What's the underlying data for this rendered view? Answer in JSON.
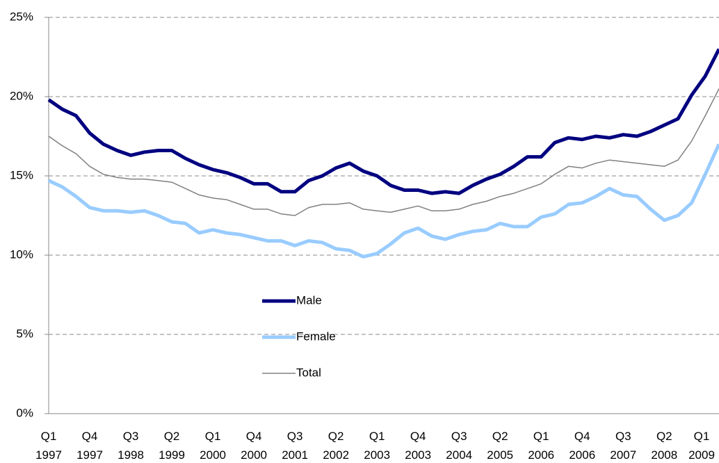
{
  "chart_data": {
    "type": "line",
    "categories": [
      "Q1\n1997",
      null,
      null,
      "Q4\n1997",
      null,
      null,
      "Q3\n1998",
      null,
      null,
      "Q2\n1999",
      null,
      null,
      "Q1\n2000",
      null,
      null,
      "Q4\n2000",
      null,
      null,
      "Q3\n2001",
      null,
      null,
      "Q2\n2002",
      null,
      null,
      "Q1\n2003",
      null,
      null,
      "Q4\n2003",
      null,
      null,
      "Q3\n2004",
      null,
      null,
      "Q2\n2005",
      null,
      null,
      "Q1\n2006",
      null,
      null,
      "Q4\n2006",
      null,
      null,
      "Q3\n2007",
      null,
      null,
      "Q2\n2008",
      null,
      null,
      "Q1\n2009",
      null
    ],
    "series": [
      {
        "name": "Male",
        "color": "#000080",
        "width": 5,
        "values": [
          19.8,
          19.2,
          18.8,
          17.7,
          17.0,
          16.6,
          16.3,
          16.5,
          16.6,
          16.6,
          16.1,
          15.7,
          15.4,
          15.2,
          14.9,
          14.5,
          14.5,
          14.0,
          14.0,
          14.7,
          15.0,
          15.5,
          15.8,
          15.3,
          15.0,
          14.4,
          14.1,
          14.1,
          13.9,
          14.0,
          13.9,
          14.4,
          14.8,
          15.1,
          15.6,
          16.2,
          16.2,
          17.1,
          17.4,
          17.3,
          17.5,
          17.4,
          17.6,
          17.5,
          17.8,
          18.2,
          18.6,
          20.1,
          21.3,
          23.0
        ]
      },
      {
        "name": "Female",
        "color": "#99ccff",
        "width": 5,
        "values": [
          14.7,
          14.3,
          13.7,
          13.0,
          12.8,
          12.8,
          12.7,
          12.8,
          12.5,
          12.1,
          12.0,
          11.4,
          11.6,
          11.4,
          11.3,
          11.1,
          10.9,
          10.9,
          10.6,
          10.9,
          10.8,
          10.4,
          10.3,
          9.9,
          10.1,
          10.7,
          11.4,
          11.7,
          11.2,
          11.0,
          11.3,
          11.5,
          11.6,
          12.0,
          11.8,
          11.8,
          12.4,
          12.6,
          13.2,
          13.3,
          13.7,
          14.2,
          13.8,
          13.7,
          12.9,
          12.2,
          12.5,
          13.3,
          15.1,
          17.0
        ]
      },
      {
        "name": "Total",
        "color": "#808080",
        "width": 1.5,
        "values": [
          17.5,
          16.9,
          16.4,
          15.6,
          15.1,
          14.9,
          14.8,
          14.8,
          14.7,
          14.6,
          14.2,
          13.8,
          13.6,
          13.5,
          13.2,
          12.9,
          12.9,
          12.6,
          12.5,
          13.0,
          13.2,
          13.2,
          13.3,
          12.9,
          12.8,
          12.7,
          12.9,
          13.1,
          12.8,
          12.8,
          12.9,
          13.2,
          13.4,
          13.7,
          13.9,
          14.2,
          14.5,
          15.1,
          15.6,
          15.5,
          15.8,
          16.0,
          15.9,
          15.8,
          15.7,
          15.6,
          16.0,
          17.2,
          18.8,
          20.5
        ]
      }
    ],
    "ylim": [
      0,
      25
    ],
    "yticks": [
      {
        "value": 0,
        "label": "0%"
      },
      {
        "value": 5,
        "label": "5%"
      },
      {
        "value": 10,
        "label": "10%"
      },
      {
        "value": 15,
        "label": "15%"
      },
      {
        "value": 20,
        "label": "20%"
      },
      {
        "value": 25,
        "label": "25%"
      }
    ],
    "grid": true
  }
}
